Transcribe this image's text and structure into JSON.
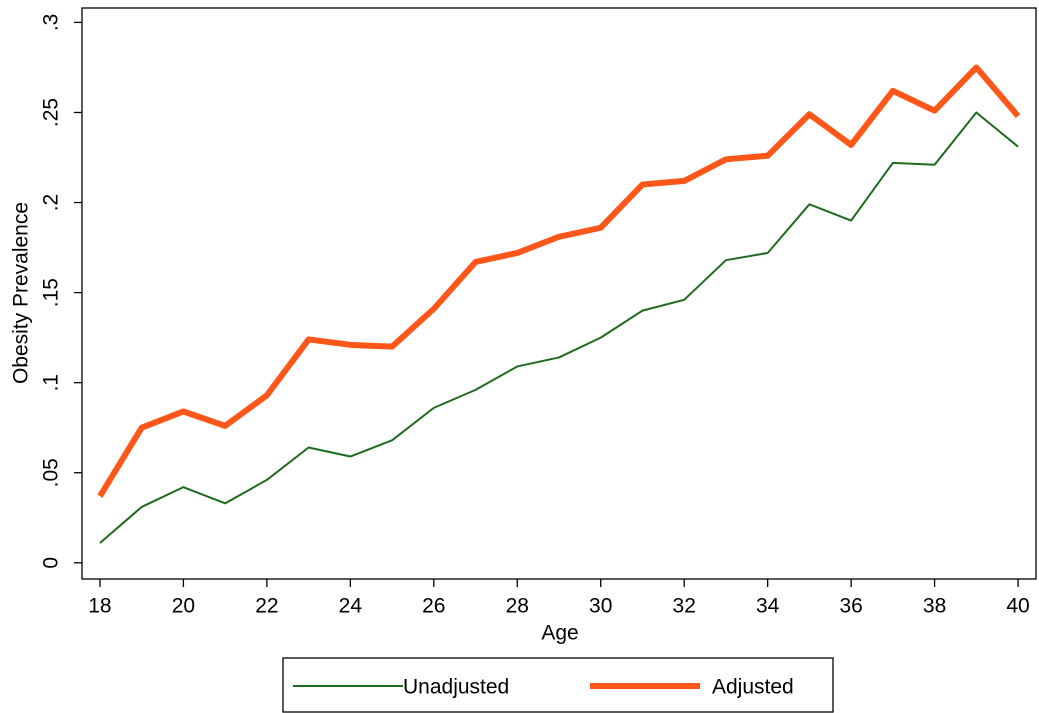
{
  "chart_data": {
    "type": "line",
    "x_label": "Age",
    "y_label": "Obesity Prevalence",
    "x": [
      18,
      19,
      20,
      21,
      22,
      23,
      24,
      25,
      26,
      27,
      28,
      29,
      30,
      31,
      32,
      33,
      34,
      35,
      36,
      37,
      38,
      39,
      40
    ],
    "series": [
      {
        "name": "Unadjusted",
        "color": "#1e6b1e",
        "values": [
          0.011,
          0.031,
          0.042,
          0.033,
          0.046,
          0.064,
          0.059,
          0.068,
          0.086,
          0.096,
          0.109,
          0.114,
          0.125,
          0.14,
          0.146,
          0.168,
          0.172,
          0.199,
          0.19,
          0.222,
          0.221,
          0.25,
          0.231
        ]
      },
      {
        "name": "Adjusted",
        "color": "#ff5719",
        "values": [
          0.037,
          0.075,
          0.084,
          0.076,
          0.093,
          0.124,
          0.121,
          0.12,
          0.141,
          0.167,
          0.172,
          0.181,
          0.186,
          0.21,
          0.212,
          0.224,
          0.226,
          0.249,
          0.232,
          0.262,
          0.251,
          0.275,
          0.248
        ]
      }
    ],
    "xlim": [
      17.57,
      40.43
    ],
    "xticks": [
      18,
      20,
      22,
      24,
      26,
      28,
      30,
      32,
      34,
      36,
      38,
      40
    ],
    "ylim": [
      -0.009,
      0.308
    ],
    "yticks": [
      0,
      {
        "value": 0.05,
        "label": ".05"
      },
      {
        "value": 0.1,
        "label": ".1"
      },
      {
        "value": 0.15,
        "label": ".15"
      },
      {
        "value": 0.2,
        "label": ".2"
      },
      {
        "value": 0.25,
        "label": ".25"
      },
      {
        "value": 0.3,
        "label": ".3"
      }
    ],
    "grid": false,
    "legend": "bottom"
  }
}
